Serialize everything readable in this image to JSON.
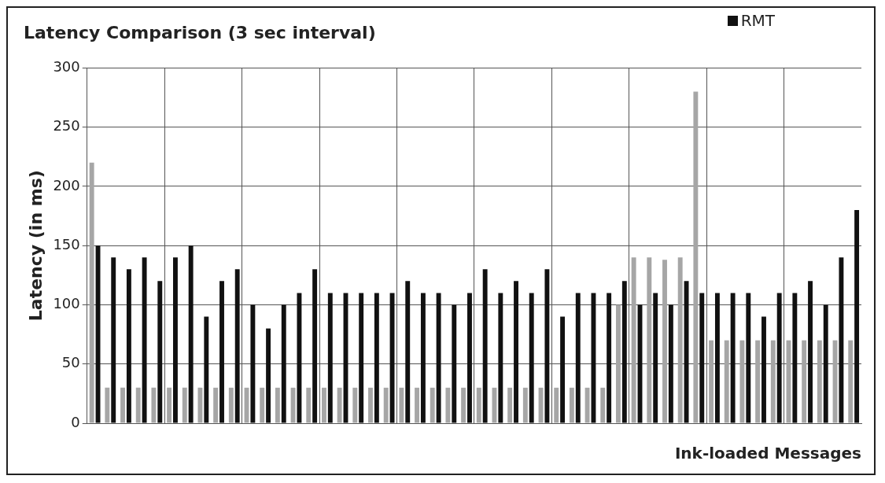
{
  "chart_data": {
    "type": "bar",
    "title": "Latency Comparison (3 sec interval)",
    "xlabel": "Ink-loaded Messages",
    "ylabel": "Latency (in ms)",
    "categories": [
      null,
      null,
      null,
      null,
      null,
      null,
      null,
      null,
      null,
      null,
      null,
      null,
      null,
      null,
      null,
      null,
      null,
      null,
      null,
      null,
      null,
      null,
      null,
      null,
      null,
      null,
      null,
      null,
      null,
      null,
      null,
      null,
      null,
      null,
      null,
      null,
      null,
      null,
      null,
      null,
      null,
      null,
      null,
      null,
      null,
      null,
      null,
      null,
      null,
      null
    ],
    "series": [
      {
        "color": "#a6a6a6",
        "values": [
          220,
          30,
          30,
          30,
          30,
          30,
          30,
          30,
          30,
          30,
          30,
          30,
          30,
          30,
          30,
          30,
          30,
          30,
          30,
          30,
          30,
          30,
          30,
          30,
          30,
          30,
          30,
          30,
          30,
          30,
          30,
          30,
          30,
          30,
          100,
          140,
          140,
          138,
          140,
          280,
          70,
          70,
          70,
          70,
          70,
          70,
          70,
          70,
          70,
          70
        ]
      },
      {
        "name": "RMT",
        "color": "#111111",
        "values": [
          150,
          140,
          130,
          140,
          120,
          140,
          150,
          90,
          120,
          130,
          100,
          80,
          100,
          110,
          130,
          110,
          110,
          110,
          110,
          110,
          120,
          110,
          110,
          100,
          110,
          130,
          110,
          120,
          110,
          130,
          90,
          110,
          110,
          110,
          120,
          100,
          110,
          100,
          120,
          110,
          110,
          110,
          110,
          90,
          110,
          110,
          120,
          100,
          140,
          180
        ]
      }
    ],
    "ylim": [
      0,
      300
    ],
    "yticks": [
      0,
      50,
      100,
      150,
      200,
      250,
      300
    ],
    "grid": true,
    "legend": "top right"
  }
}
